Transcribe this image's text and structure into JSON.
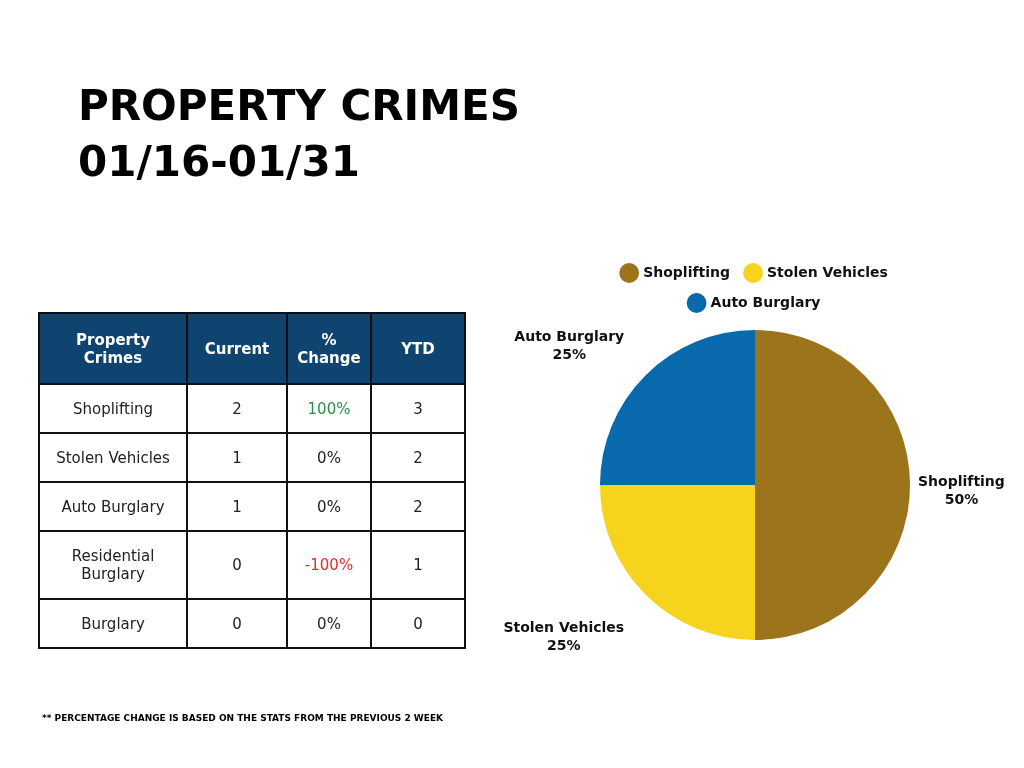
{
  "chart_data": [
    {
      "type": "other",
      "title": "PROPERTY CRIMES\n01/16-01/31",
      "xlabel": "Property Crimes",
      "categories": [
        "Shoplifting",
        "Stolen Vehicles",
        "Auto Burglary",
        "Residential Burglary",
        "Burglary"
      ],
      "series": [
        {
          "name": "Current",
          "values": [
            2,
            1,
            1,
            0,
            0
          ]
        },
        {
          "name": "% Change",
          "values": [
            100,
            0,
            0,
            -100,
            0
          ],
          "value_labels": [
            "100%",
            "0%",
            "0%",
            "-100%",
            "0%"
          ],
          "colors": [
            "#2e8b4a",
            "#222222",
            "#222222",
            "#e0302e",
            "#222222"
          ]
        },
        {
          "name": "YTD",
          "values": [
            3,
            2,
            2,
            1,
            0
          ]
        }
      ],
      "data_labels": true,
      "annotations": [
        "** PERCENTAGE CHANGE IS BASED ON THE STATS FROM THE PREVIOUS 2 WEEK"
      ]
    },
    {
      "type": "pie",
      "categories": [
        "Shoplifting",
        "Stolen Vehicles",
        "Auto Burglary"
      ],
      "values": [
        50,
        25,
        25
      ],
      "colors": [
        "#9b741c",
        "#f6d31c",
        "#0869ad"
      ],
      "legend": "top",
      "value_labels": [
        "50%",
        "25%",
        "25%"
      ]
    }
  ]
}
